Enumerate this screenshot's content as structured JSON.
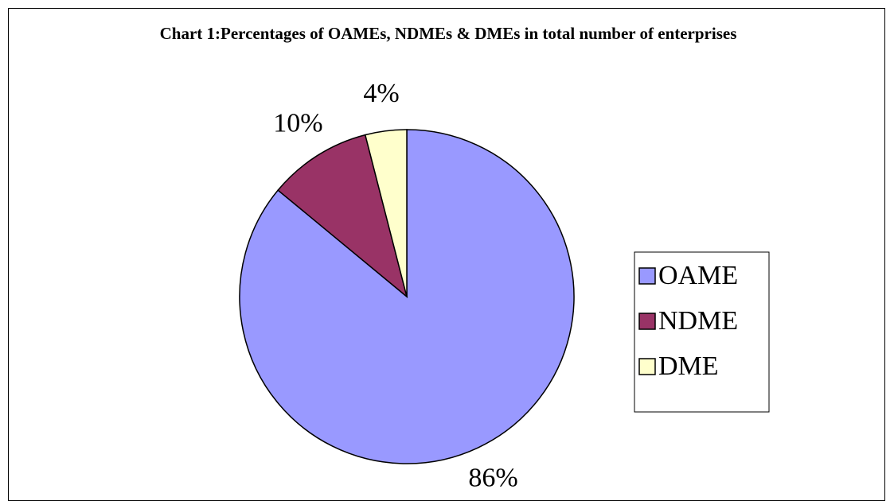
{
  "chart_data": {
    "type": "pie",
    "title": "Chart 1:Percentages of OAMEs, NDMEs & DMEs in total number of enterprises",
    "categories": [
      "OAME",
      "NDME",
      "DME"
    ],
    "values": [
      86,
      10,
      4
    ],
    "value_labels": [
      "86%",
      "10%",
      "4%"
    ],
    "colors": [
      "#9999ff",
      "#993366",
      "#ffffcc"
    ],
    "legend": "right"
  }
}
